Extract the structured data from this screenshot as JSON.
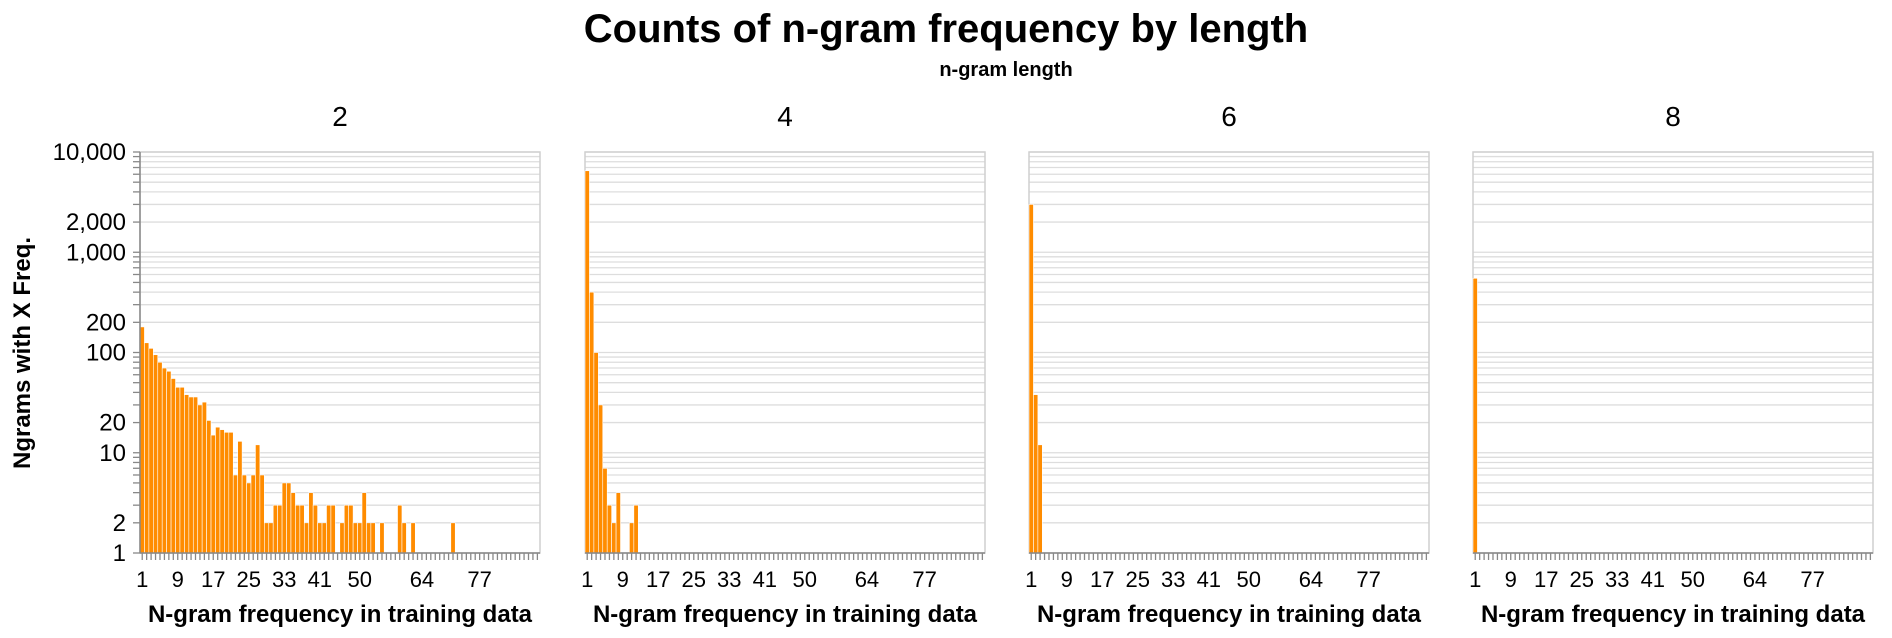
{
  "title": "Counts of n-gram frequency by length",
  "column_header": "n-gram length",
  "y_axis_title": "Ngrams with X Freq.",
  "x_axis_title": "N-gram frequency in training data",
  "y_tick_labels": [
    "1",
    "2",
    "10",
    "20",
    "100",
    "200",
    "1,000",
    "2,000",
    "10,000"
  ],
  "x_tick_labels": [
    "1",
    "9",
    "17",
    "25",
    "33",
    "41",
    "50",
    "64",
    "77"
  ],
  "colors": {
    "bar": "#ff8c00",
    "grid": "#dddddd"
  },
  "chart_data": {
    "type": "bar",
    "y_scale": "log",
    "ylim": [
      1,
      10000
    ],
    "x_categories": [
      1,
      2,
      3,
      4,
      5,
      6,
      7,
      8,
      9,
      10,
      11,
      12,
      13,
      14,
      15,
      16,
      17,
      18,
      19,
      20,
      21,
      22,
      23,
      24,
      25,
      26,
      27,
      28,
      29,
      30,
      31,
      32,
      33,
      34,
      35,
      36,
      37,
      38,
      39,
      40,
      41,
      42,
      43,
      44,
      45,
      46,
      47,
      48,
      49,
      50,
      51,
      52,
      53,
      54,
      55,
      56,
      57,
      58,
      59,
      60,
      61,
      62,
      63,
      64,
      65,
      66,
      67,
      68,
      69,
      70,
      71,
      72,
      73,
      74,
      75,
      76,
      77,
      78,
      79,
      80,
      81,
      82,
      83,
      84,
      85,
      86,
      87,
      88,
      89,
      90
    ],
    "x_tick_labels": [
      1,
      9,
      17,
      25,
      33,
      41,
      50,
      64,
      77
    ],
    "facets": [
      {
        "label": "2",
        "points": [
          [
            1,
            180
          ],
          [
            2,
            125
          ],
          [
            3,
            110
          ],
          [
            4,
            95
          ],
          [
            5,
            80
          ],
          [
            6,
            70
          ],
          [
            7,
            65
          ],
          [
            8,
            55
          ],
          [
            9,
            45
          ],
          [
            10,
            45
          ],
          [
            11,
            38
          ],
          [
            12,
            36
          ],
          [
            13,
            36
          ],
          [
            14,
            30
          ],
          [
            15,
            32
          ],
          [
            16,
            21
          ],
          [
            17,
            15
          ],
          [
            18,
            18
          ],
          [
            19,
            17
          ],
          [
            20,
            16
          ],
          [
            21,
            16
          ],
          [
            22,
            6
          ],
          [
            23,
            13
          ],
          [
            24,
            6
          ],
          [
            25,
            5
          ],
          [
            26,
            6
          ],
          [
            27,
            12
          ],
          [
            28,
            6
          ],
          [
            29,
            2
          ],
          [
            30,
            2
          ],
          [
            31,
            3
          ],
          [
            32,
            3
          ],
          [
            33,
            5
          ],
          [
            34,
            5
          ],
          [
            35,
            4
          ],
          [
            36,
            3
          ],
          [
            37,
            3
          ],
          [
            38,
            2
          ],
          [
            39,
            4
          ],
          [
            40,
            3
          ],
          [
            41,
            2
          ],
          [
            42,
            2
          ],
          [
            43,
            3
          ],
          [
            44,
            3
          ],
          [
            46,
            2
          ],
          [
            47,
            3
          ],
          [
            48,
            3
          ],
          [
            49,
            2
          ],
          [
            50,
            2
          ],
          [
            51,
            4
          ],
          [
            52,
            2
          ],
          [
            53,
            2
          ],
          [
            55,
            2
          ],
          [
            59,
            3
          ],
          [
            60,
            2
          ],
          [
            62,
            2
          ],
          [
            71,
            2
          ]
        ]
      },
      {
        "label": "4",
        "points": [
          [
            1,
            6500
          ],
          [
            2,
            400
          ],
          [
            3,
            100
          ],
          [
            4,
            30
          ],
          [
            5,
            7
          ],
          [
            6,
            3
          ],
          [
            7,
            2
          ],
          [
            8,
            4
          ],
          [
            11,
            2
          ],
          [
            12,
            3
          ]
        ]
      },
      {
        "label": "6",
        "points": [
          [
            1,
            3000
          ],
          [
            2,
            38
          ],
          [
            3,
            12
          ]
        ]
      },
      {
        "label": "8",
        "points": [
          [
            1,
            550
          ]
        ]
      }
    ]
  }
}
